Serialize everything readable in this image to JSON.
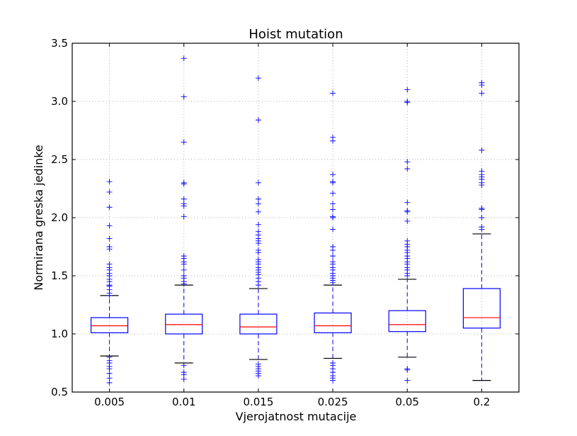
{
  "chart_data": {
    "type": "box",
    "title": "Hoist mutation",
    "xlabel": "Vjerojatnost mutacije",
    "ylabel": "Normirana greska jedinke",
    "ylim": [
      0.5,
      3.5
    ],
    "yticks": [
      "0.5",
      "1.0",
      "1.5",
      "2.0",
      "2.5",
      "3.0",
      "3.5"
    ],
    "grid": true,
    "colors": {
      "box": "#0000ff",
      "median": "#ff0000",
      "whisker": "#0000ff",
      "cap": "#000000",
      "flier": "#0000ff",
      "grid": "#b0b0b0"
    },
    "categories": [
      "0.005",
      "0.01",
      "0.015",
      "0.025",
      "0.05",
      "0.2"
    ],
    "boxes": [
      {
        "q1": 1.01,
        "median": 1.07,
        "q3": 1.14,
        "whisker_low": 0.81,
        "whisker_high": 1.33,
        "outliers_high": [
          1.33,
          1.35,
          1.38,
          1.41,
          1.42,
          1.45,
          1.47,
          1.5,
          1.52,
          1.55,
          1.57,
          1.6,
          1.73,
          1.75,
          1.82,
          1.93,
          2.09,
          2.22,
          2.31
        ],
        "outliers_low": [
          0.8,
          0.77,
          0.75,
          0.72,
          0.7,
          0.66,
          0.62,
          0.58
        ]
      },
      {
        "q1": 1.0,
        "median": 1.08,
        "q3": 1.17,
        "whisker_low": 0.75,
        "whisker_high": 1.42,
        "outliers_high": [
          1.43,
          1.45,
          1.48,
          1.5,
          1.55,
          1.6,
          1.62,
          1.65,
          1.67,
          2.01,
          2.1,
          2.12,
          2.16,
          2.29,
          2.3,
          2.65,
          3.04,
          3.37
        ],
        "outliers_low": [
          0.73,
          0.67,
          0.65,
          0.61
        ]
      },
      {
        "q1": 1.0,
        "median": 1.06,
        "q3": 1.17,
        "whisker_low": 0.78,
        "whisker_high": 1.39,
        "outliers_high": [
          1.42,
          1.45,
          1.48,
          1.51,
          1.53,
          1.55,
          1.57,
          1.6,
          1.62,
          1.64,
          1.7,
          1.72,
          1.78,
          1.8,
          1.82,
          1.85,
          1.88,
          1.94,
          2.05,
          2.12,
          2.16,
          2.3,
          2.84,
          3.2
        ],
        "outliers_low": [
          0.74,
          0.72,
          0.7,
          0.68,
          0.66,
          0.64
        ]
      },
      {
        "q1": 1.01,
        "median": 1.07,
        "q3": 1.18,
        "whisker_low": 0.79,
        "whisker_high": 1.42,
        "outliers_high": [
          1.44,
          1.46,
          1.48,
          1.5,
          1.52,
          1.55,
          1.57,
          1.6,
          1.62,
          1.67,
          1.72,
          1.75,
          1.9,
          2.0,
          2.01,
          2.07,
          2.12,
          2.21,
          2.3,
          2.31,
          2.37,
          2.66,
          2.69,
          3.07
        ],
        "outliers_low": [
          0.75,
          0.73,
          0.7,
          0.67,
          0.64,
          0.62,
          0.6
        ]
      },
      {
        "q1": 1.02,
        "median": 1.08,
        "q3": 1.2,
        "whisker_low": 0.8,
        "whisker_high": 1.47,
        "outliers_high": [
          1.5,
          1.52,
          1.55,
          1.57,
          1.6,
          1.62,
          1.65,
          1.67,
          1.7,
          1.72,
          1.75,
          1.77,
          1.8,
          1.97,
          2.05,
          2.06,
          2.13,
          2.42,
          2.48,
          2.99,
          3.0,
          3.1
        ],
        "outliers_low": [
          0.7,
          0.69,
          0.6
        ]
      },
      {
        "q1": 1.05,
        "median": 1.14,
        "q3": 1.39,
        "whisker_low": 0.6,
        "whisker_high": 1.86,
        "outliers_high": [
          1.9,
          1.92,
          2.0,
          2.07,
          2.08,
          2.28,
          2.3,
          2.33,
          2.35,
          2.37,
          2.4,
          2.58,
          3.07,
          3.14,
          3.16
        ],
        "outliers_low": []
      }
    ]
  }
}
